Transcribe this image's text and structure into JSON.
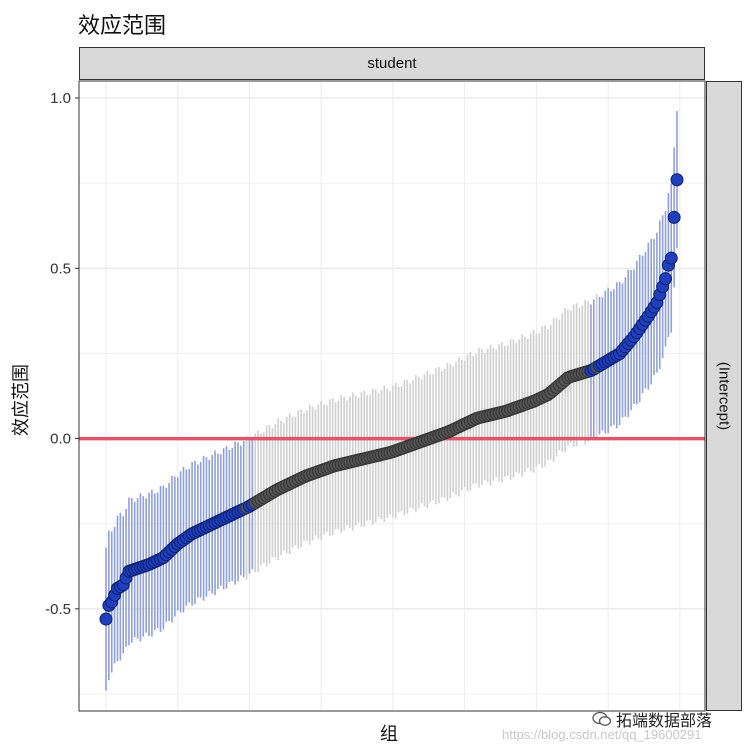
{
  "title": "效应范围",
  "facet_top": "student",
  "facet_right": "(Intercept)",
  "watermark": "拓端数据部落",
  "url_watermark": "https://blog.csdn.net/qq_19600291",
  "colors": {
    "significant": "#1f3fbf",
    "nonsignificant": "#555555",
    "ci_significant": "#8fa0d8",
    "ci_nonsignificant": "#cfcfcf",
    "zero_line": "#e0556a"
  },
  "chart_data": {
    "type": "scatter",
    "title": "效应范围",
    "xlabel": "组",
    "ylabel": "效应范围",
    "ylim": [
      -0.8,
      1.05
    ],
    "yticks": [
      1.0,
      0.5,
      0.0,
      -0.5
    ],
    "ytick_labels": [
      "1.0",
      "0.5",
      "0.0",
      "-0.5"
    ],
    "reference_line": 0.0,
    "grid": true,
    "n_groups": 200,
    "y_min": -0.53,
    "y_max": 0.76,
    "ci_half_width_center": 0.19,
    "ci_half_width_tails": 0.21,
    "anchors": [
      [
        0,
        -0.53
      ],
      [
        1,
        -0.49
      ],
      [
        2,
        -0.48
      ],
      [
        4,
        -0.44
      ],
      [
        6,
        -0.43
      ],
      [
        8,
        -0.39
      ],
      [
        15,
        -0.37
      ],
      [
        20,
        -0.35
      ],
      [
        25,
        -0.31
      ],
      [
        30,
        -0.28
      ],
      [
        40,
        -0.24
      ],
      [
        45,
        -0.22
      ],
      [
        50,
        -0.2
      ],
      [
        60,
        -0.15
      ],
      [
        70,
        -0.11
      ],
      [
        80,
        -0.08
      ],
      [
        90,
        -0.06
      ],
      [
        100,
        -0.04
      ],
      [
        110,
        -0.01
      ],
      [
        120,
        0.02
      ],
      [
        130,
        0.06
      ],
      [
        140,
        0.08
      ],
      [
        150,
        0.11
      ],
      [
        155,
        0.13
      ],
      [
        162,
        0.18
      ],
      [
        170,
        0.2
      ],
      [
        180,
        0.25
      ],
      [
        185,
        0.3
      ],
      [
        190,
        0.36
      ],
      [
        193,
        0.4
      ],
      [
        196,
        0.47
      ],
      [
        197,
        0.51
      ],
      [
        198,
        0.53
      ],
      [
        199,
        0.65
      ],
      [
        200,
        0.76
      ]
    ]
  }
}
